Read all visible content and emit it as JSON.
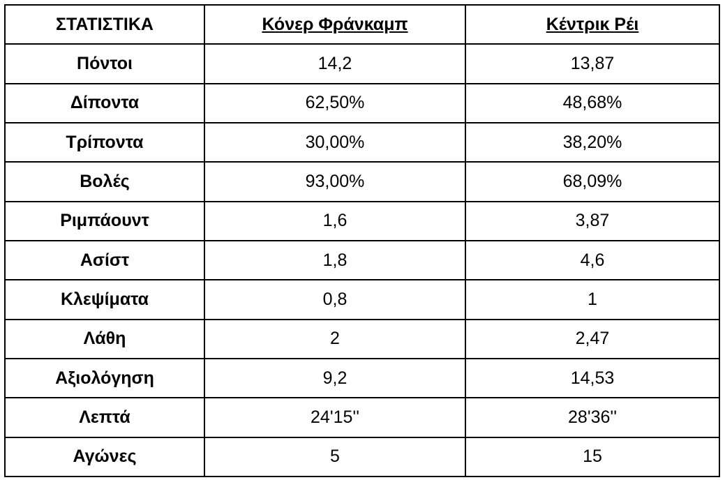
{
  "table": {
    "header": [
      "ΣΤΑΤΙΣΤΙΚΑ",
      "Κόνερ Φράνκαμπ",
      "Κέντρικ Ρέι"
    ],
    "rows": [
      [
        "Πόντοι",
        "14,2",
        "13,87"
      ],
      [
        "Δίποντα",
        "62,50%",
        "48,68%"
      ],
      [
        "Τρίποντα",
        "30,00%",
        "38,20%"
      ],
      [
        "Βολές",
        "93,00%",
        "68,09%"
      ],
      [
        "Ριμπάουντ",
        "1,6",
        "3,87"
      ],
      [
        "Ασίστ",
        "1,8",
        "4,6"
      ],
      [
        "Κλεψίματα",
        "0,8",
        "1"
      ],
      [
        "Λάθη",
        "2",
        "2,47"
      ],
      [
        "Αξιολόγηση",
        "9,2",
        "14,53"
      ],
      [
        "Λεπτά",
        "24'15''",
        "28'36''"
      ],
      [
        "Αγώνες",
        "5",
        "15"
      ]
    ]
  }
}
